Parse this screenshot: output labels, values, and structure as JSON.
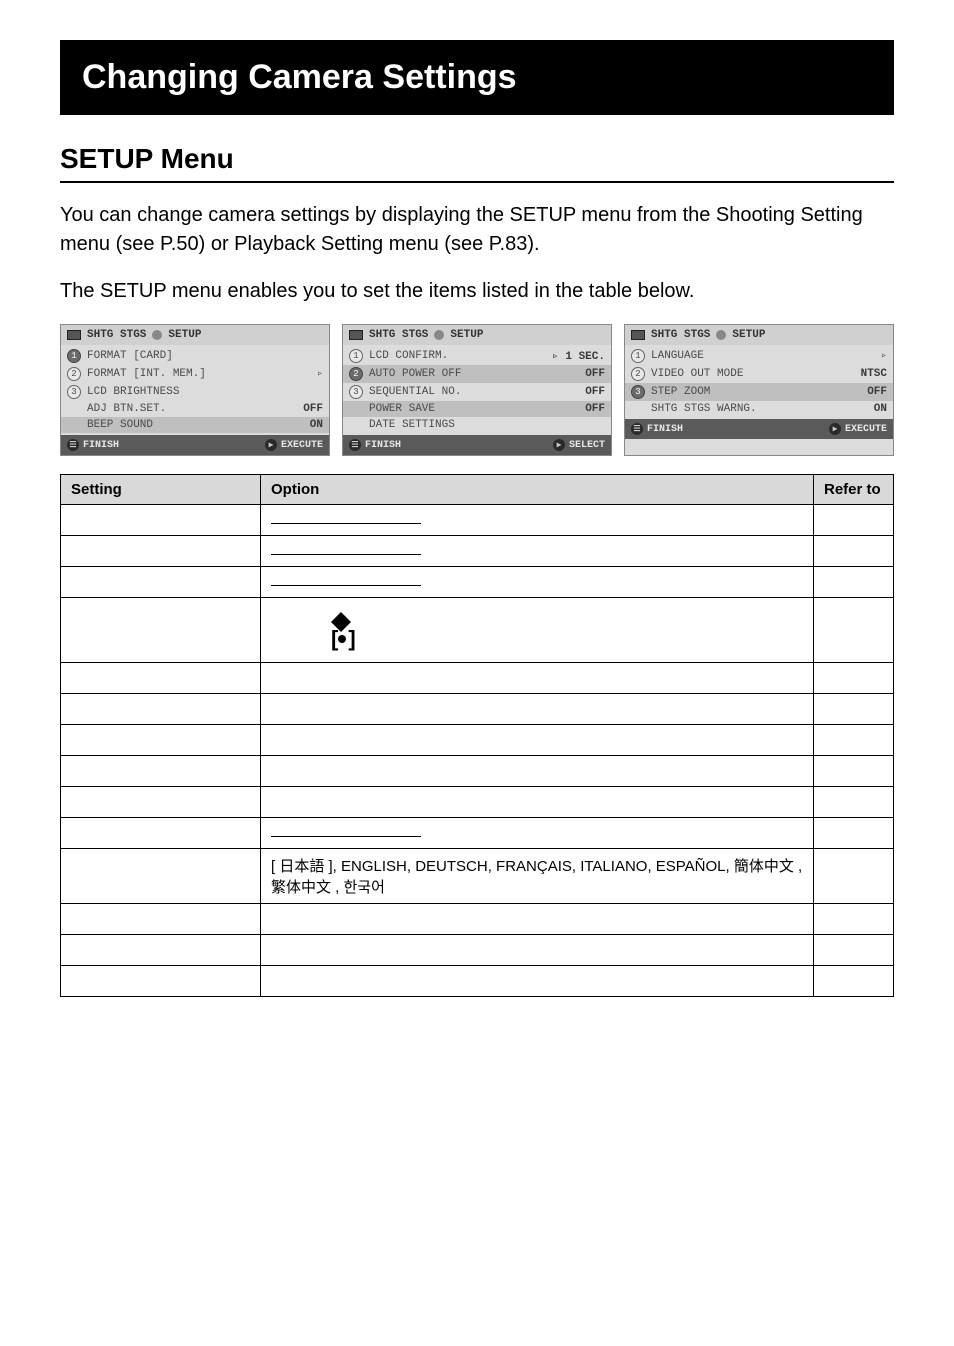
{
  "page": {
    "title": "Changing Camera Settings",
    "subtitle": "SETUP Menu",
    "paragraph1": "You can change camera settings by displaying the SETUP menu from the Shooting Setting menu (see P.50) or Playback Setting menu (see P.83).",
    "paragraph2": "The SETUP menu enables you to set the items listed in the table below."
  },
  "screenshots": [
    {
      "tab_left": "SHTG STGS",
      "tab_right": "SETUP",
      "rows": [
        {
          "n": "1",
          "sel": true,
          "label": "FORMAT [CARD]",
          "val": ""
        },
        {
          "n": "2",
          "sel": false,
          "label": "FORMAT [INT. MEM.]",
          "val": "",
          "tri": "▹"
        },
        {
          "n": "3",
          "sel": false,
          "label": "LCD BRIGHTNESS",
          "val": ""
        },
        {
          "n": "",
          "sel": false,
          "label": "ADJ BTN.SET.",
          "val": "OFF"
        },
        {
          "n": "",
          "sel": false,
          "label": "BEEP SOUND",
          "val": "ON",
          "hl": true
        }
      ],
      "footer_left": "FINISH",
      "footer_right": "EXECUTE"
    },
    {
      "tab_left": "SHTG STGS",
      "tab_right": "SETUP",
      "rows": [
        {
          "n": "1",
          "sel": false,
          "label": "LCD CONFIRM.",
          "val": "▹ 1 SEC."
        },
        {
          "n": "2",
          "sel": true,
          "label": "AUTO POWER OFF",
          "val": "OFF",
          "hl": true
        },
        {
          "n": "3",
          "sel": false,
          "label": "SEQUENTIAL NO.",
          "val": "OFF"
        },
        {
          "n": "",
          "sel": false,
          "label": "POWER SAVE",
          "val": "OFF",
          "hl": true
        },
        {
          "n": "",
          "sel": false,
          "label": "DATE SETTINGS",
          "val": ""
        }
      ],
      "footer_left": "FINISH",
      "footer_right": "SELECT"
    },
    {
      "tab_left": "SHTG STGS",
      "tab_right": "SETUP",
      "rows": [
        {
          "n": "1",
          "sel": false,
          "label": "LANGUAGE",
          "val": "",
          "tri": "▹"
        },
        {
          "n": "2",
          "sel": false,
          "label": "VIDEO OUT MODE",
          "val": "NTSC"
        },
        {
          "n": "3",
          "sel": true,
          "label": "STEP ZOOM",
          "val": "OFF",
          "hl": true
        },
        {
          "n": "",
          "sel": false,
          "label": "SHTG STGS WARNG.",
          "val": "ON"
        }
      ],
      "footer_left": "FINISH",
      "footer_right": "EXECUTE"
    }
  ],
  "table": {
    "headers": {
      "setting": "Setting",
      "option": "Option",
      "refer": "Refer to"
    },
    "rows": [
      {
        "setting": "",
        "option_type": "underline",
        "refer": ""
      },
      {
        "setting": "",
        "option_type": "underline",
        "refer": ""
      },
      {
        "setting": "",
        "option_type": "underline",
        "refer": ""
      },
      {
        "setting": "",
        "option_type": "icons",
        "refer": ""
      },
      {
        "setting": "",
        "option_type": "blank",
        "refer": ""
      },
      {
        "setting": "",
        "option_type": "blank",
        "refer": ""
      },
      {
        "setting": "",
        "option_type": "blank",
        "refer": ""
      },
      {
        "setting": "",
        "option_type": "blank",
        "refer": ""
      },
      {
        "setting": "",
        "option_type": "blank",
        "refer": ""
      },
      {
        "setting": "",
        "option_type": "underline",
        "refer": ""
      },
      {
        "setting": "",
        "option_type": "text",
        "option_text": "[ 日本語 ], ENGLISH, DEUTSCH, FRANÇAIS, ITALIANO, ESPAÑOL, 簡体中文 , 繁体中文 , 한국어",
        "refer": ""
      },
      {
        "setting": "",
        "option_type": "blank",
        "refer": ""
      },
      {
        "setting": "",
        "option_type": "blank",
        "refer": ""
      },
      {
        "setting": "",
        "option_type": "blank",
        "refer": ""
      }
    ]
  },
  "colors": {
    "title_bg": "#000000",
    "title_fg": "#ffffff",
    "th_bg": "#d9d9d9",
    "shot_bg": "#dcdcdc",
    "shot_footer_bg": "#5a5a5a"
  }
}
